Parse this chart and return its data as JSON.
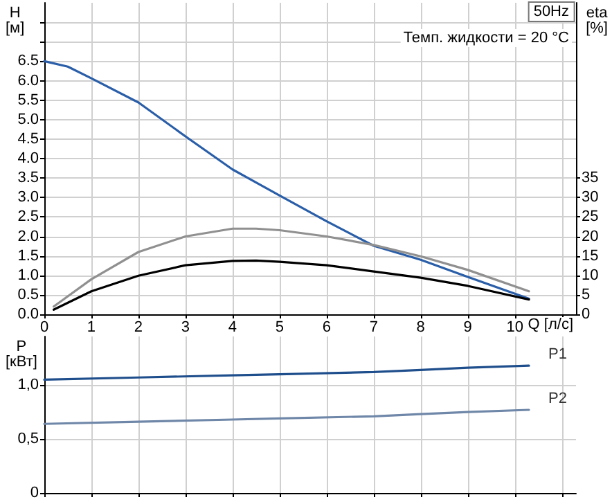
{
  "chart_data": [
    {
      "type": "line",
      "title": "50Hz",
      "annotations": [
        "Темп. жидкости = 20 °C"
      ],
      "xlabel": "Q [л/с]",
      "ylabel": "H [м]",
      "y2label": "eta [%]",
      "xlim": [
        0,
        11.3
      ],
      "xticks": [
        0,
        1,
        2,
        3,
        4,
        5,
        6,
        7,
        8,
        9,
        10,
        {
          "value": 11,
          "label": null
        }
      ],
      "ylim": [
        0,
        8
      ],
      "yticks": [
        {
          "value": 0,
          "label": "0.0"
        },
        0.5,
        {
          "value": 1,
          "label": "1.0"
        },
        1.5,
        {
          "value": 2,
          "label": "2.0"
        },
        2.5,
        {
          "value": 3,
          "label": "3.0"
        },
        3.5,
        {
          "value": 4,
          "label": "4.0"
        },
        4.5,
        {
          "value": 5,
          "label": "5.0"
        },
        5.5,
        {
          "value": 6,
          "label": "6.0"
        },
        6.5,
        {
          "value": 7,
          "label": null
        },
        {
          "value": 7.5,
          "label": null
        }
      ],
      "y2lim": [
        0,
        80
      ],
      "y2ticks": [
        0,
        5,
        10,
        15,
        20,
        25,
        30,
        35
      ],
      "grid": true,
      "legend": false,
      "marker": "none",
      "line_style": "solid",
      "series": [
        {
          "color": "#2a5ea8",
          "x": [
            0,
            0.5,
            1,
            2,
            3,
            4,
            5,
            6,
            7,
            8,
            9,
            10.3
          ],
          "values": [
            6.5,
            6.36,
            6.06,
            5.44,
            4.57,
            3.72,
            3.05,
            2.39,
            1.76,
            1.4,
            0.96,
            0.4
          ]
        },
        {
          "color": "#909090",
          "axis": "y2",
          "x": [
            0.2,
            1,
            2,
            3,
            4,
            4.5,
            5,
            6,
            7,
            8,
            9,
            10.3
          ],
          "values": [
            2,
            9,
            16,
            20,
            22,
            22,
            21.6,
            20,
            17.8,
            14.9,
            11.4,
            5.9
          ]
        },
        {
          "color": "#000000",
          "axis": "y2",
          "x": [
            0.2,
            1,
            2,
            3,
            4,
            4.5,
            5,
            6,
            7,
            8,
            9,
            10.3
          ],
          "values": [
            1.2,
            5.9,
            9.9,
            12.6,
            13.7,
            13.8,
            13.5,
            12.6,
            11,
            9.4,
            7.3,
            3.8
          ]
        }
      ]
    },
    {
      "type": "line",
      "ylabel": "P [кВт]",
      "tick_labels": "y",
      "xlim": [
        0,
        11.3
      ],
      "xticks": [
        0,
        1,
        2,
        3,
        4,
        5,
        6,
        7,
        8,
        9,
        10,
        11
      ],
      "ylim": [
        0,
        1.45
      ],
      "yticks": [
        0,
        {
          "value": 0.5,
          "label": "0,5"
        },
        {
          "value": 1,
          "label": "1,0"
        }
      ],
      "grid": true,
      "legend": false,
      "marker": "none",
      "line_style": "solid",
      "series": [
        {
          "name": "P1",
          "color": "#1f4e8c",
          "x": [
            0,
            2,
            4,
            5,
            7,
            8,
            9,
            10.3
          ],
          "values": [
            1.05,
            1.07,
            1.09,
            1.1,
            1.12,
            1.14,
            1.16,
            1.18
          ]
        },
        {
          "name": "P2",
          "color": "#6f87a8",
          "x": [
            0,
            2,
            4,
            5,
            7,
            8,
            9,
            10.3
          ],
          "values": [
            0.64,
            0.66,
            0.68,
            0.69,
            0.71,
            0.73,
            0.75,
            0.77
          ]
        }
      ]
    }
  ]
}
